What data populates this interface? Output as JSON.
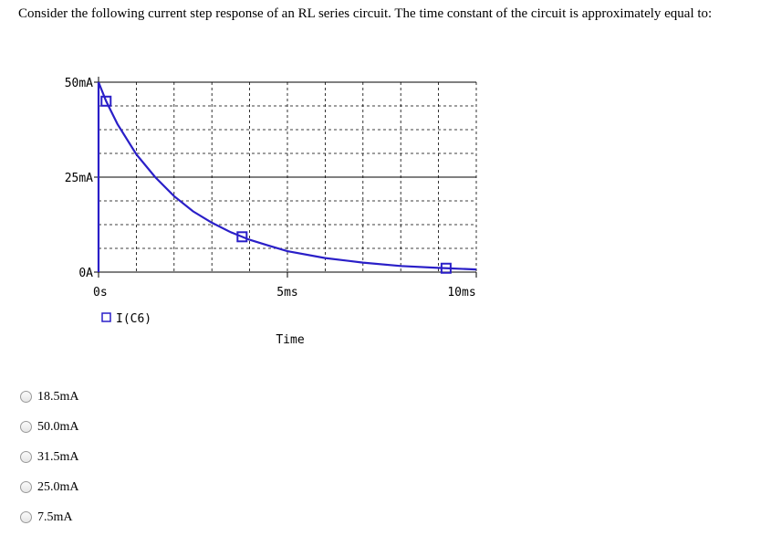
{
  "question": "Consider the following current step response of an RL series circuit.  The time constant of the circuit is approximately equal to:",
  "chart_data": {
    "type": "line",
    "x_unit": "ms",
    "y_unit": "mA",
    "xlim": [
      0,
      10
    ],
    "ylim": [
      0,
      50
    ],
    "y_tick_labels": [
      "50mA",
      "25mA",
      "0A"
    ],
    "y_tick_values": [
      50,
      25,
      0
    ],
    "x_tick_labels": [
      "0s",
      "5ms",
      "10ms"
    ],
    "x_tick_values": [
      0,
      5,
      10
    ],
    "xlabel": "Time",
    "grid": true,
    "line_color": "#2a1fc8",
    "series": [
      {
        "name": "I(C6)",
        "x": [
          0,
          0.2,
          0.5,
          1,
          1.5,
          2,
          2.5,
          3,
          3.5,
          4,
          4.5,
          5,
          6,
          7,
          8,
          9,
          10
        ],
        "y": [
          50,
          45,
          39,
          31,
          25,
          20,
          16,
          13,
          10.5,
          8.5,
          7,
          5.5,
          3.7,
          2.5,
          1.6,
          1.1,
          0.7
        ]
      }
    ],
    "markers_x": [
      0.2,
      3.8,
      9.2
    ]
  },
  "legend": {
    "label": "I(C6)"
  },
  "options": [
    {
      "label": "18.5mA"
    },
    {
      "label": "50.0mA"
    },
    {
      "label": "31.5mA"
    },
    {
      "label": "25.0mA"
    },
    {
      "label": "7.5mA"
    }
  ]
}
